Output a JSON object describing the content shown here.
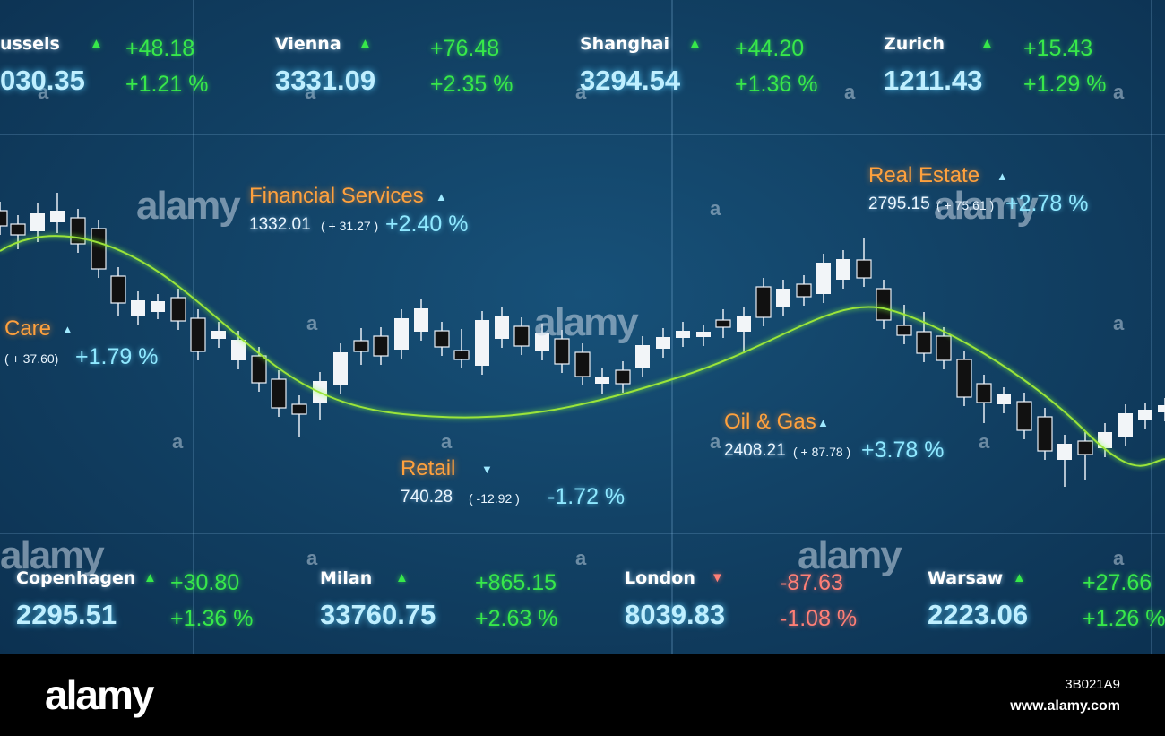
{
  "top_tickers": [
    {
      "name": "ussels",
      "arrow": "▲",
      "change": "+48.18",
      "value": "030.35",
      "percent": "+1.21 %"
    },
    {
      "name": "Vienna",
      "arrow": "▲",
      "change": "+76.48",
      "value": "3331.09",
      "percent": "+2.35 %"
    },
    {
      "name": "Shanghai",
      "arrow": "▲",
      "change": "+44.20",
      "value": "3294.54",
      "percent": "+1.36 %"
    },
    {
      "name": "Zurich",
      "arrow": "▲",
      "change": "+15.43",
      "value": "1211.43",
      "percent": "+1.29 %"
    }
  ],
  "bottom_tickers": [
    {
      "name": "Copenhagen",
      "arrow": "▲",
      "change": "+30.80",
      "value": "2295.51",
      "percent": "+1.36 %"
    },
    {
      "name": "Milan",
      "arrow": "▲",
      "change": "+865.15",
      "value": "33760.75",
      "percent": "+2.63 %"
    },
    {
      "name": "London",
      "arrow": "▼",
      "change": "-87.63",
      "value": "8039.83",
      "percent": "-1.08 %"
    },
    {
      "name": "Warsaw",
      "arrow": "▲",
      "change": "+27.66",
      "value": "2223.06",
      "percent": "+1.26 %"
    }
  ],
  "sectors": [
    {
      "name": "Financial Services",
      "arrow": "▲",
      "value": "1332.01",
      "change": "( + 31.27 )",
      "percent": "+2.40 %"
    },
    {
      "name": "Care",
      "arrow": "▲",
      "change": "( + 37.60)",
      "percent": "+1.79 %"
    },
    {
      "name": "Retail",
      "arrow": "▼",
      "value": "740.28",
      "change": "( -12.92 )",
      "percent": "-1.72 %"
    },
    {
      "name": "Oil & Gas",
      "arrow": "▲",
      "value": "2408.21",
      "change": "( + 87.78 )",
      "percent": "+3.78 %"
    },
    {
      "name": "Real Estate",
      "arrow": "▲",
      "value": "2795.15",
      "change": "( + 75.61 )",
      "percent": "+2.78 %"
    }
  ],
  "watermark": "alamy",
  "watermark_mark": "a",
  "footer": {
    "logo": "alamy",
    "image_id": "3B021A9",
    "site": "www.alamy.com"
  }
}
